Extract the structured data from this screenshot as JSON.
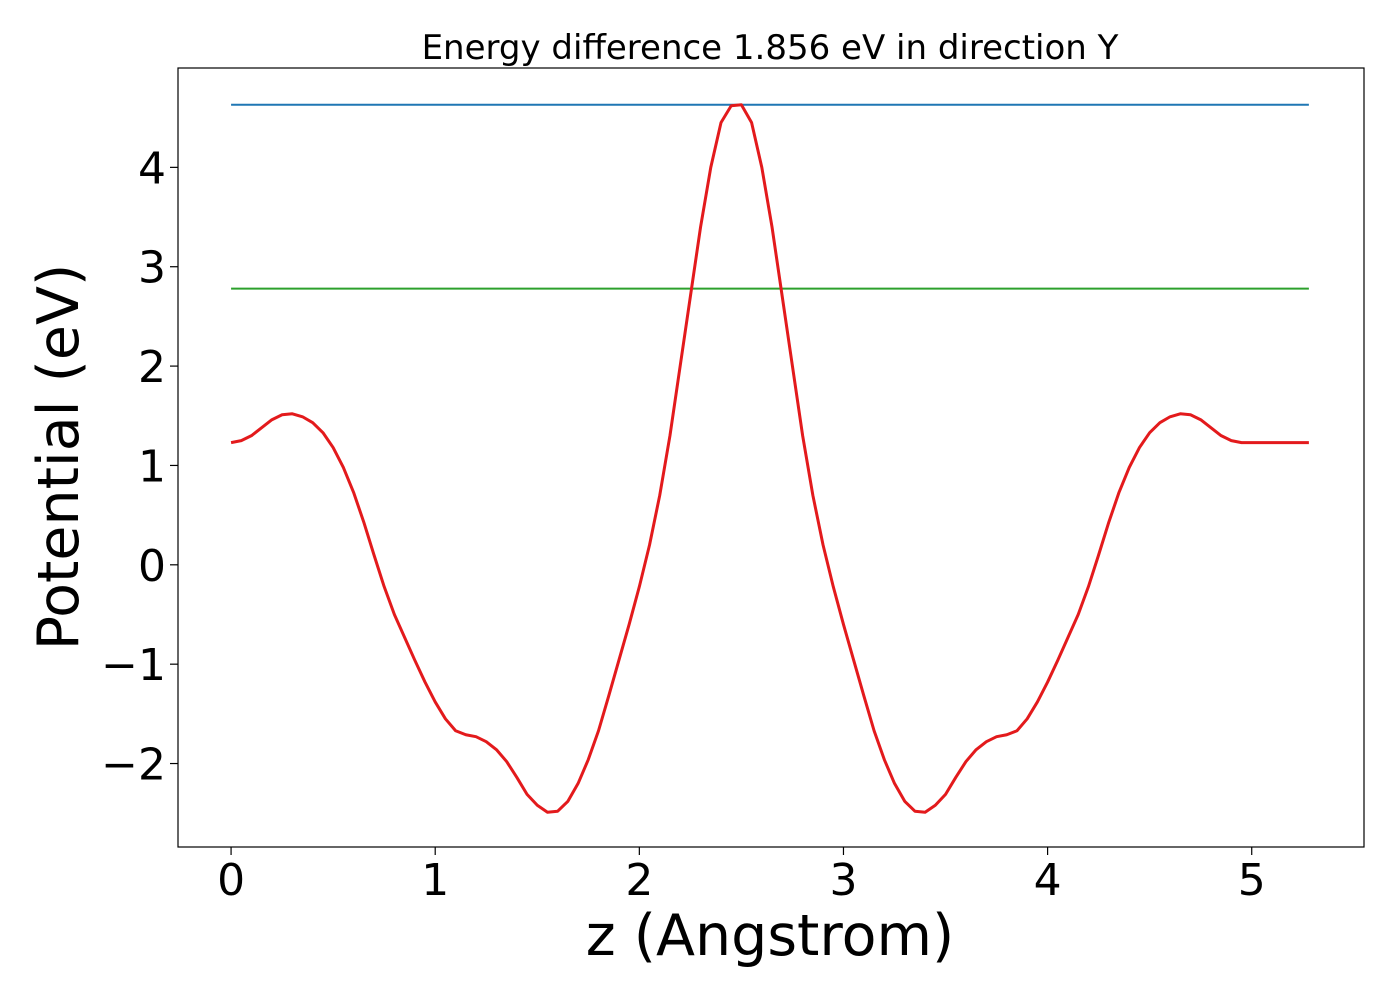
{
  "chart_data": {
    "type": "line",
    "title": "Energy difference 1.856 eV in direction Y",
    "xlabel": "z (Angstrom)",
    "ylabel": "Potential (eV)",
    "xlim": [
      -0.26,
      5.55
    ],
    "ylim": [
      -2.84,
      5.0
    ],
    "xticks": [
      0,
      1,
      2,
      3,
      4,
      5
    ],
    "xtick_labels": [
      "0",
      "1",
      "2",
      "3",
      "4",
      "5"
    ],
    "yticks": [
      -2,
      -1,
      0,
      1,
      2,
      3,
      4
    ],
    "ytick_labels": [
      "−2",
      "−1",
      "0",
      "1",
      "2",
      "3",
      "4"
    ],
    "grid": false,
    "hlines": [
      {
        "y": 4.63,
        "xmin": 0,
        "xmax": 5.28,
        "color": "#1f77b4"
      },
      {
        "y": 2.78,
        "xmin": 0,
        "xmax": 5.28,
        "color": "#2ca02c"
      }
    ],
    "series": [
      {
        "color": "#e31a1c",
        "x": [
          0,
          0.05,
          0.1,
          0.15,
          0.2,
          0.25,
          0.3,
          0.35,
          0.4,
          0.45,
          0.5,
          0.55,
          0.6,
          0.65,
          0.7,
          0.75,
          0.8,
          0.85,
          0.9,
          0.95,
          1.0,
          1.05,
          1.1,
          1.15,
          1.2,
          1.25,
          1.3,
          1.35,
          1.4,
          1.45,
          1.5,
          1.55,
          1.6,
          1.65,
          1.7,
          1.75,
          1.8,
          1.85,
          1.9,
          1.95,
          2.0,
          2.05,
          2.1,
          2.15,
          2.2,
          2.25,
          2.3,
          2.35,
          2.4,
          2.45,
          2.5,
          2.55,
          2.6,
          2.65,
          2.7,
          2.75,
          2.8,
          2.85,
          2.9,
          2.95,
          3.0,
          3.05,
          3.1,
          3.15,
          3.2,
          3.25,
          3.3,
          3.35,
          3.4,
          3.45,
          3.5,
          3.55,
          3.6,
          3.65,
          3.7,
          3.75,
          3.8,
          3.85,
          3.9,
          3.95,
          4.0,
          4.05,
          4.1,
          4.15,
          4.2,
          4.25,
          4.3,
          4.35,
          4.4,
          4.45,
          4.5,
          4.55,
          4.6,
          4.65,
          4.7,
          4.75,
          4.8,
          4.85,
          4.9,
          4.95,
          5.0,
          5.05,
          5.1,
          5.15,
          5.2,
          5.25,
          5.28
        ],
        "y": [
          1.23,
          1.25,
          1.3,
          1.38,
          1.46,
          1.51,
          1.52,
          1.49,
          1.43,
          1.33,
          1.18,
          0.98,
          0.73,
          0.43,
          0.1,
          -0.22,
          -0.5,
          -0.73,
          -0.96,
          -1.18,
          -1.38,
          -1.55,
          -1.67,
          -1.71,
          -1.73,
          -1.78,
          -1.86,
          -1.98,
          -2.14,
          -2.31,
          -2.42,
          -2.49,
          -2.48,
          -2.38,
          -2.2,
          -1.96,
          -1.67,
          -1.32,
          -0.96,
          -0.6,
          -0.22,
          0.2,
          0.7,
          1.3,
          2.0,
          2.7,
          3.4,
          4.0,
          4.45,
          4.62,
          4.63,
          4.45,
          4.0,
          3.4,
          2.7,
          2.0,
          1.3,
          0.7,
          0.2,
          -0.22,
          -0.6,
          -0.96,
          -1.32,
          -1.67,
          -1.96,
          -2.2,
          -2.38,
          -2.48,
          -2.49,
          -2.42,
          -2.31,
          -2.14,
          -1.98,
          -1.86,
          -1.78,
          -1.73,
          -1.71,
          -1.67,
          -1.55,
          -1.38,
          -1.18,
          -0.96,
          -0.73,
          -0.5,
          -0.22,
          0.1,
          0.43,
          0.73,
          0.98,
          1.18,
          1.33,
          1.43,
          1.49,
          1.52,
          1.51,
          1.46,
          1.38,
          1.3,
          1.25,
          1.23,
          1.23,
          1.23,
          1.23,
          1.23,
          1.23,
          1.23,
          1.23
        ]
      }
    ]
  }
}
